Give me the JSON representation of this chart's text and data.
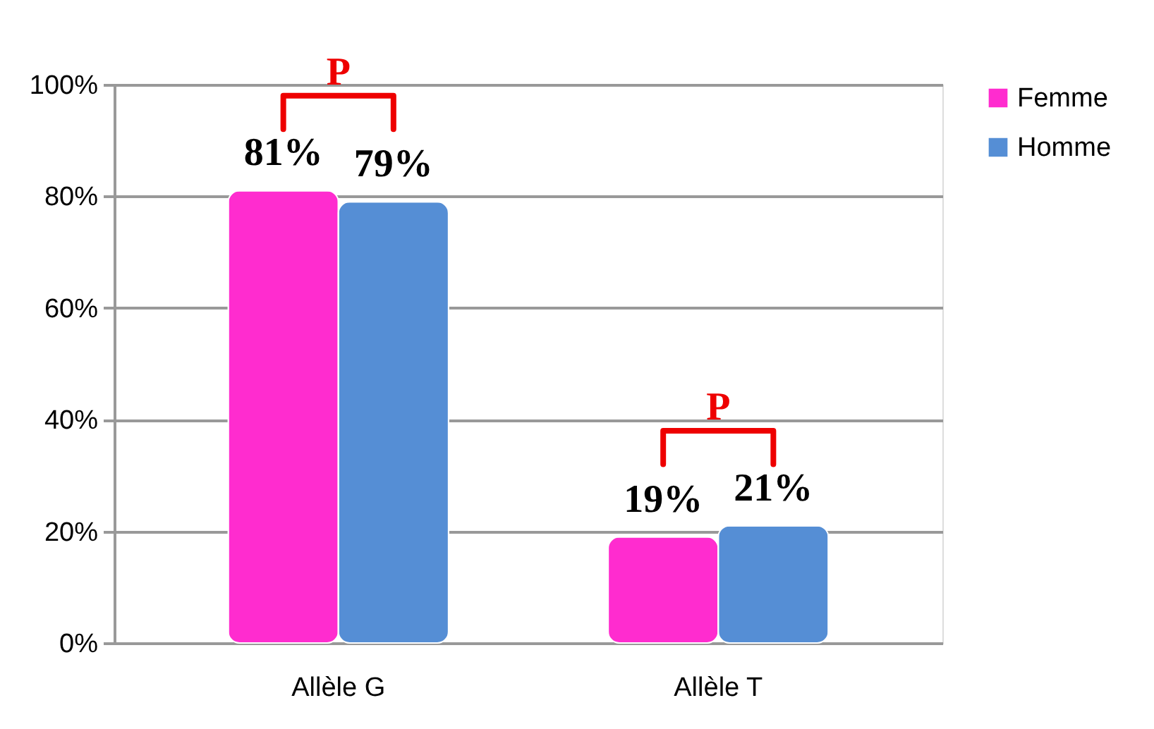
{
  "chart_data": {
    "type": "bar",
    "categories": [
      "Allèle G",
      "Allèle T"
    ],
    "series": [
      {
        "name": "Femme",
        "color": "#ff2ccf",
        "values": [
          81,
          19
        ],
        "value_labels": [
          "81%",
          "19%"
        ]
      },
      {
        "name": "Homme",
        "color": "#558ed5",
        "values": [
          79,
          21
        ],
        "value_labels": [
          "79%",
          "21%"
        ]
      }
    ],
    "ylim": [
      0,
      100
    ],
    "yticks": [
      {
        "value": 0,
        "label": "0%"
      },
      {
        "value": 20,
        "label": "20%"
      },
      {
        "value": 40,
        "label": "40%"
      },
      {
        "value": 60,
        "label": "60%"
      },
      {
        "value": 80,
        "label": "80%"
      },
      {
        "value": 100,
        "label": "100%"
      }
    ],
    "grid": "y",
    "legend": "right",
    "annotations": [
      "P",
      "P"
    ]
  }
}
